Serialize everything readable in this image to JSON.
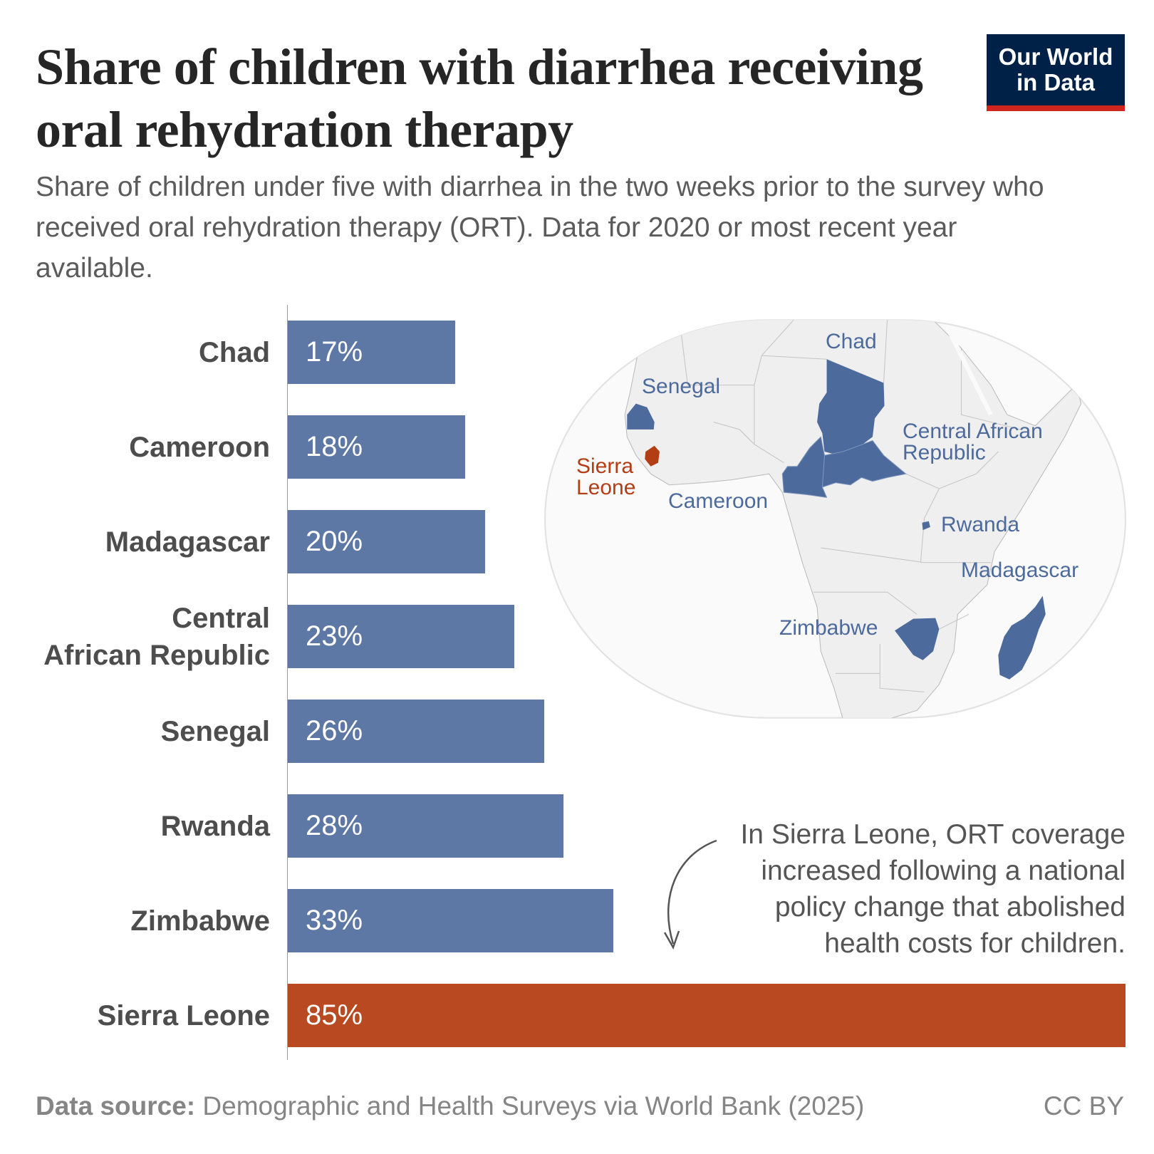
{
  "header": {
    "title": "Share of children with diarrhea receiving oral rehydration therapy",
    "subtitle": "Share of children under five with diarrhea in the two weeks prior to the survey who received oral rehydration therapy (ORT). Data for 2020 or most recent year available.",
    "logo": "Our World in Data"
  },
  "chart_data": {
    "type": "bar",
    "orientation": "horizontal",
    "title": "Share of children with diarrhea receiving oral rehydration therapy",
    "categories": [
      "Chad",
      "Cameroon",
      "Madagascar",
      "Central African Republic",
      "Senegal",
      "Rwanda",
      "Zimbabwe",
      "Sierra Leone"
    ],
    "category_labels": [
      "Chad",
      "Cameroon",
      "Madagascar",
      "Central\nAfrican Republic",
      "Senegal",
      "Rwanda",
      "Zimbabwe",
      "Sierra Leone"
    ],
    "values": [
      17,
      18,
      20,
      23,
      26,
      28,
      33,
      85
    ],
    "value_labels": [
      "17%",
      "18%",
      "20%",
      "23%",
      "26%",
      "28%",
      "33%",
      "85%"
    ],
    "unit": "%",
    "xlim": [
      0,
      85
    ],
    "highlight": "Sierra Leone",
    "colors": {
      "default": "#5e78a6",
      "highlight": "#b84920"
    },
    "grid": false,
    "annotation": "In Sierra Leone, ORT coverage increased following a national policy change that abolished health costs for children."
  },
  "map": {
    "labels": {
      "chad": "Chad",
      "senegal": "Senegal",
      "car": "Central African\nRepublic",
      "sierra_leone": "Sierra\nLeone",
      "cameroon": "Cameroon",
      "rwanda": "Rwanda",
      "madagascar": "Madagascar",
      "zimbabwe": "Zimbabwe"
    },
    "colors": {
      "highlighted": "#4c6a9c",
      "sierra_leone": "#b53d14",
      "land": "#efefef",
      "ocean": "#fafafa"
    }
  },
  "footer": {
    "source_label": "Data source:",
    "source": "Demographic and Health Surveys via World Bank (2025)",
    "license": "CC BY"
  }
}
